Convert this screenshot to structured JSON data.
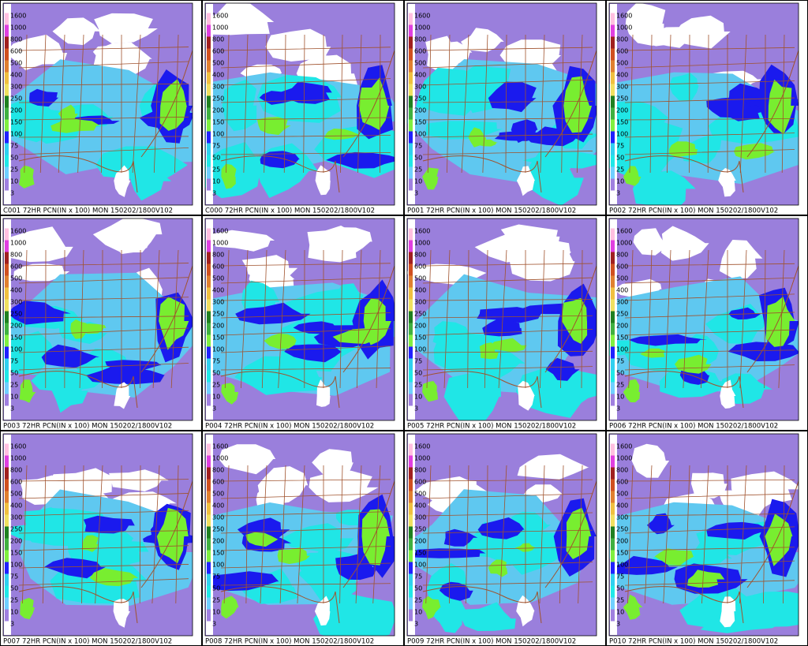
{
  "colorbar": {
    "labels": [
      "1600",
      "1000",
      "800",
      "600",
      "500",
      "400",
      "300",
      "250",
      "200",
      "150",
      "100",
      "75",
      "50",
      "25",
      "10",
      "3"
    ],
    "colors": [
      "#ffc0e0",
      "#e040e0",
      "#a02020",
      "#d05020",
      "#e08030",
      "#f0c040",
      "#f0e060",
      "#208020",
      "#40b040",
      "#80f040",
      "#2020ff",
      "#30d0f0",
      "#20e8e8",
      "#70d0ff",
      "#a080e0",
      "#ffffff"
    ]
  },
  "panels": [
    {
      "caption": "C001 72HR PCN(IN x 100) MON 150202/1800V102"
    },
    {
      "caption": "C000 72HR PCN(IN x 100) MON 150202/1800V102"
    },
    {
      "caption": "P001 72HR PCN(IN x 100) MON 150202/1800V102"
    },
    {
      "caption": "P002 72HR PCN(IN x 100) MON 150202/1800V102"
    },
    {
      "caption": "P003 72HR PCN(IN x 100) MON 150202/1800V102"
    },
    {
      "caption": "P004 72HR PCN(IN x 100) MON 150202/1800V102"
    },
    {
      "caption": "P005 72HR PCN(IN x 100) MON 150202/1800V102"
    },
    {
      "caption": "P006 72HR PCN(IN x 100) MON 150202/1800V102"
    },
    {
      "caption": "P007 72HR PCN(IN x 100) MON 150202/1800V102"
    },
    {
      "caption": "P008 72HR PCN(IN x 100) MON 150202/1800V102"
    },
    {
      "caption": "P009 72HR PCN(IN x 100) MON 150202/1800V102"
    },
    {
      "caption": "P010 72HR PCN(IN x 100) MON 150202/1800V102"
    }
  ]
}
